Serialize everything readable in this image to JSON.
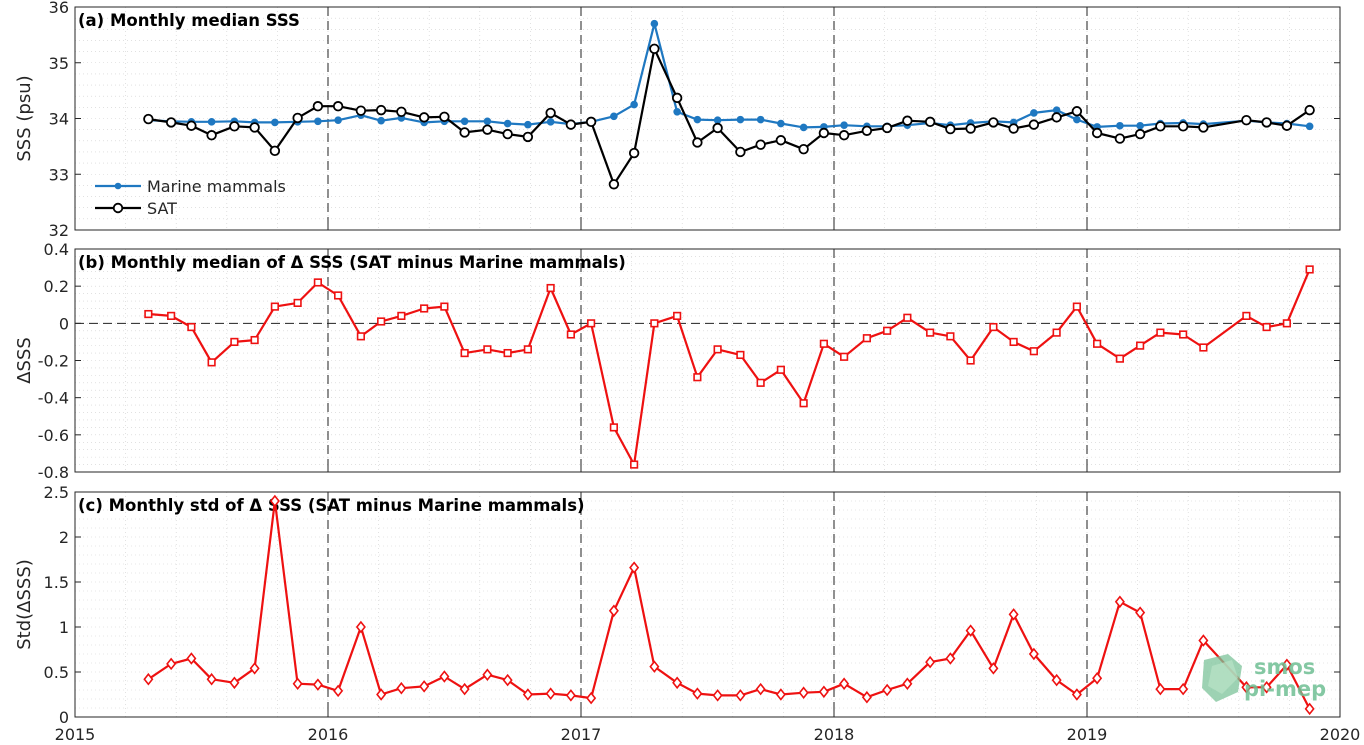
{
  "colors": {
    "mammals": "#1f78c1",
    "sat": "#000000",
    "delta": "#ee1111"
  },
  "x_axis": {
    "range": [
      2015,
      2020
    ],
    "ticks": [
      "2015",
      "2016",
      "2017",
      "2018",
      "2019",
      "2020"
    ],
    "year_lines": [
      2016,
      2017,
      2018,
      2019
    ]
  },
  "chart_data": [
    {
      "type": "line",
      "title": "(a) Monthly median SSS",
      "xlabel": "",
      "ylabel": "SSS (psu)",
      "ylim": [
        32,
        36
      ],
      "yticks": [
        32,
        33,
        34,
        35,
        36
      ],
      "ytick_labels": [
        "32",
        "33",
        "34",
        "35",
        "36"
      ],
      "grid": true,
      "legend": {
        "placement": "bottom-left",
        "entries": [
          "Marine mammals",
          "SAT"
        ]
      },
      "series": [
        {
          "name": "Marine mammals",
          "marker": "dot",
          "x": [
            2015.29,
            2015.38,
            2015.46,
            2015.54,
            2015.63,
            2015.71,
            2015.79,
            2015.88,
            2015.96,
            2016.04,
            2016.13,
            2016.21,
            2016.29,
            2016.38,
            2016.46,
            2016.54,
            2016.63,
            2016.71,
            2016.79,
            2016.88,
            2016.96,
            2017.04,
            2017.13,
            2017.21,
            2017.29,
            2017.38,
            2017.46,
            2017.54,
            2017.63,
            2017.71,
            2017.79,
            2017.88,
            2017.96,
            2018.04,
            2018.13,
            2018.21,
            2018.29,
            2018.38,
            2018.46,
            2018.54,
            2018.63,
            2018.71,
            2018.79,
            2018.88,
            2018.96,
            2019.04,
            2019.13,
            2019.21,
            2019.29,
            2019.38,
            2019.46,
            2019.63,
            2019.71,
            2019.79,
            2019.88
          ],
          "y": [
            33.97,
            33.95,
            33.94,
            33.94,
            33.95,
            33.93,
            33.93,
            33.94,
            33.95,
            33.97,
            34.06,
            33.96,
            34.01,
            33.93,
            33.95,
            33.95,
            33.95,
            33.91,
            33.89,
            33.94,
            33.9,
            33.94,
            34.04,
            34.25,
            35.7,
            34.12,
            33.98,
            33.97,
            33.98,
            33.98,
            33.91,
            33.84,
            33.85,
            33.88,
            33.86,
            33.86,
            33.88,
            33.92,
            33.88,
            33.92,
            33.95,
            33.93,
            34.1,
            34.15,
            33.98,
            33.85,
            33.87,
            33.87,
            33.91,
            33.92,
            33.9,
            33.96,
            33.93,
            33.91,
            33.86
          ]
        },
        {
          "name": "SAT",
          "marker": "circle",
          "x": [
            2015.29,
            2015.38,
            2015.46,
            2015.54,
            2015.63,
            2015.71,
            2015.79,
            2015.88,
            2015.96,
            2016.04,
            2016.13,
            2016.21,
            2016.29,
            2016.38,
            2016.46,
            2016.54,
            2016.63,
            2016.71,
            2016.79,
            2016.88,
            2016.96,
            2017.04,
            2017.13,
            2017.21,
            2017.29,
            2017.38,
            2017.46,
            2017.54,
            2017.63,
            2017.71,
            2017.79,
            2017.88,
            2017.96,
            2018.04,
            2018.13,
            2018.21,
            2018.29,
            2018.38,
            2018.46,
            2018.54,
            2018.63,
            2018.71,
            2018.79,
            2018.88,
            2018.96,
            2019.04,
            2019.13,
            2019.21,
            2019.29,
            2019.38,
            2019.46,
            2019.63,
            2019.71,
            2019.79,
            2019.88
          ],
          "y": [
            33.99,
            33.93,
            33.87,
            33.7,
            33.86,
            33.84,
            33.42,
            34.01,
            34.22,
            34.22,
            34.14,
            34.15,
            34.12,
            34.02,
            34.03,
            33.75,
            33.8,
            33.72,
            33.67,
            34.1,
            33.89,
            33.94,
            32.82,
            33.38,
            35.25,
            34.37,
            33.57,
            33.83,
            33.4,
            33.53,
            33.61,
            33.45,
            33.74,
            33.7,
            33.78,
            33.83,
            33.96,
            33.94,
            33.81,
            33.82,
            33.93,
            33.82,
            33.89,
            34.02,
            34.13,
            33.74,
            33.64,
            33.72,
            33.86,
            33.86,
            33.84,
            33.97,
            33.93,
            33.87,
            34.15
          ]
        }
      ]
    },
    {
      "type": "line",
      "title": "(b) Monthly median of Δ SSS (SAT minus Marine mammals)",
      "xlabel": "",
      "ylabel": "ΔSSS",
      "ylim": [
        -0.8,
        0.4
      ],
      "yticks": [
        -0.8,
        -0.6,
        -0.4,
        -0.2,
        0,
        0.2,
        0.4
      ],
      "ytick_labels": [
        "-0.8",
        "-0.6",
        "-0.4",
        "-0.2",
        "0",
        "0.2",
        "0.4"
      ],
      "grid": true,
      "zero_line": true,
      "series": [
        {
          "marker": "square",
          "x": [
            2015.29,
            2015.38,
            2015.46,
            2015.54,
            2015.63,
            2015.71,
            2015.79,
            2015.88,
            2015.96,
            2016.04,
            2016.13,
            2016.21,
            2016.29,
            2016.38,
            2016.46,
            2016.54,
            2016.63,
            2016.71,
            2016.79,
            2016.88,
            2016.96,
            2017.04,
            2017.13,
            2017.21,
            2017.29,
            2017.38,
            2017.46,
            2017.54,
            2017.63,
            2017.71,
            2017.79,
            2017.88,
            2017.96,
            2018.04,
            2018.13,
            2018.21,
            2018.29,
            2018.38,
            2018.46,
            2018.54,
            2018.63,
            2018.71,
            2018.79,
            2018.88,
            2018.96,
            2019.04,
            2019.13,
            2019.21,
            2019.29,
            2019.38,
            2019.46,
            2019.63,
            2019.71,
            2019.79,
            2019.88
          ],
          "y": [
            0.05,
            0.04,
            -0.02,
            -0.21,
            -0.1,
            -0.09,
            0.09,
            0.11,
            0.22,
            0.15,
            -0.07,
            0.01,
            0.04,
            0.08,
            0.09,
            -0.16,
            -0.14,
            -0.16,
            -0.14,
            0.19,
            -0.06,
            0.0,
            -0.56,
            -0.76,
            0.0,
            0.04,
            -0.29,
            -0.14,
            -0.17,
            -0.32,
            -0.25,
            -0.43,
            -0.11,
            -0.18,
            -0.08,
            -0.04,
            0.03,
            -0.05,
            -0.07,
            -0.2,
            -0.02,
            -0.1,
            -0.15,
            -0.05,
            0.09,
            -0.11,
            -0.19,
            -0.12,
            -0.05,
            -0.06,
            -0.13,
            0.04,
            -0.02,
            0.0,
            0.29
          ]
        }
      ]
    },
    {
      "type": "line",
      "title": "(c) Monthly std of Δ SSS (SAT minus Marine mammals)",
      "xlabel": "",
      "ylabel": "Std(ΔSSS)",
      "ylim": [
        0,
        2.5
      ],
      "yticks": [
        0,
        0.5,
        1,
        1.5,
        2,
        2.5
      ],
      "ytick_labels": [
        "0",
        "0.5",
        "1",
        "1.5",
        "2",
        "2.5"
      ],
      "grid": true,
      "series": [
        {
          "marker": "diamond",
          "x": [
            2015.29,
            2015.38,
            2015.46,
            2015.54,
            2015.63,
            2015.71,
            2015.79,
            2015.88,
            2015.96,
            2016.04,
            2016.13,
            2016.21,
            2016.29,
            2016.38,
            2016.46,
            2016.54,
            2016.63,
            2016.71,
            2016.79,
            2016.88,
            2016.96,
            2017.04,
            2017.13,
            2017.21,
            2017.29,
            2017.38,
            2017.46,
            2017.54,
            2017.63,
            2017.71,
            2017.79,
            2017.88,
            2017.96,
            2018.04,
            2018.13,
            2018.21,
            2018.29,
            2018.38,
            2018.46,
            2018.54,
            2018.63,
            2018.71,
            2018.79,
            2018.88,
            2018.96,
            2019.04,
            2019.13,
            2019.21,
            2019.29,
            2019.38,
            2019.46,
            2019.63,
            2019.71,
            2019.79,
            2019.88
          ],
          "y": [
            0.42,
            0.59,
            0.65,
            0.42,
            0.38,
            0.54,
            2.4,
            0.37,
            0.36,
            0.29,
            1.0,
            0.25,
            0.32,
            0.34,
            0.45,
            0.31,
            0.47,
            0.41,
            0.25,
            0.26,
            0.24,
            0.21,
            1.18,
            1.66,
            0.56,
            0.38,
            0.26,
            0.24,
            0.24,
            0.31,
            0.25,
            0.27,
            0.28,
            0.37,
            0.22,
            0.3,
            0.37,
            0.61,
            0.65,
            0.96,
            0.54,
            1.14,
            0.7,
            0.41,
            0.25,
            0.43,
            1.28,
            1.16,
            0.31,
            0.31,
            0.85,
            0.33,
            0.33,
            0.58,
            0.09
          ]
        }
      ]
    }
  ],
  "logo": {
    "name": "smos-pi-mep-logo",
    "text_top": "smos",
    "text_bottom": "pi-mep"
  }
}
